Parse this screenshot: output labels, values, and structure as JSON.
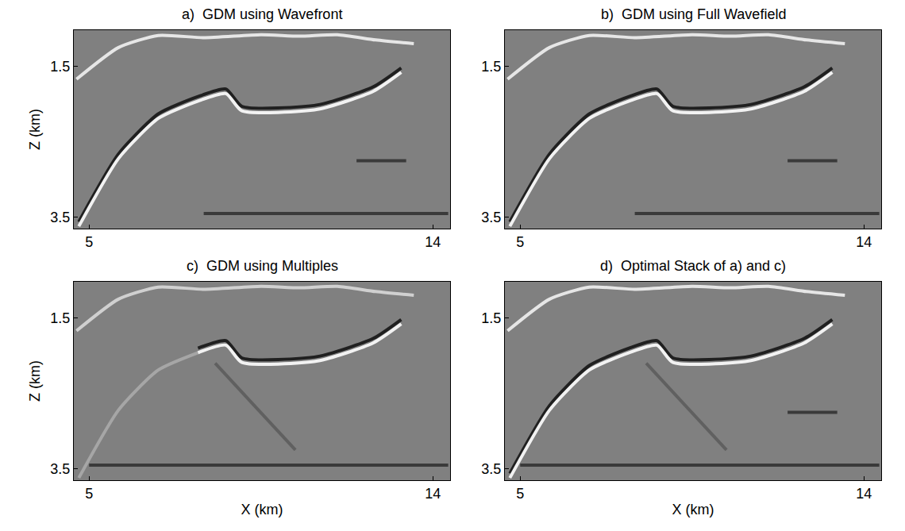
{
  "chart_data": [
    {
      "type": "line",
      "title": "a)  GDM using Wavefront",
      "ylabel": "Z (km)",
      "xlim": [
        4.6,
        14.45
      ],
      "ylim": [
        3.65,
        1.02
      ],
      "xticks": [
        5,
        14
      ],
      "yticks": [
        1.5,
        3.5
      ],
      "grid": false,
      "series": [
        {
          "color": "#202020",
          "x": [
            4.73,
            5.77,
            6.81,
            7.85,
            8.58,
            9.0,
            10.98,
            12.44,
            13.17
          ],
          "values": [
            3.56,
            2.66,
            2.13,
            1.9,
            1.8,
            2.03,
            2.01,
            1.77,
            1.52
          ]
        },
        {
          "color": "#f2f2f2",
          "x": [
            4.73,
            5.77,
            6.81,
            7.85,
            8.58,
            9.0,
            10.98,
            12.44,
            13.17
          ],
          "values": [
            3.62,
            2.72,
            2.19,
            1.96,
            1.86,
            2.09,
            2.07,
            1.83,
            1.58
          ]
        },
        {
          "color": "#e6e6e6",
          "x": [
            4.67,
            5.77,
            6.81,
            8.0,
            9.5,
            10.5,
            11.5,
            12.5,
            13.5
          ],
          "values": [
            1.67,
            1.25,
            1.09,
            1.12,
            1.08,
            1.1,
            1.08,
            1.15,
            1.2
          ]
        },
        {
          "color": "#3a3a3a",
          "x": [
            8.0,
            14.4
          ],
          "values": [
            3.45,
            3.45
          ]
        },
        {
          "color": "#3a3a3a",
          "x": [
            12.0,
            13.3
          ],
          "values": [
            2.75,
            2.75
          ]
        }
      ]
    },
    {
      "type": "line",
      "title": "b)  GDM using Full Wavefield",
      "xlim": [
        4.6,
        14.45
      ],
      "ylim": [
        3.65,
        1.02
      ],
      "xticks": [
        5,
        14
      ],
      "yticks": [
        1.5,
        3.5
      ],
      "grid": false,
      "series": [
        {
          "color": "#202020",
          "x": [
            4.73,
            5.77,
            6.81,
            7.85,
            8.58,
            9.0,
            10.98,
            12.44,
            13.17
          ],
          "values": [
            3.56,
            2.66,
            2.13,
            1.9,
            1.8,
            2.03,
            2.01,
            1.77,
            1.52
          ]
        },
        {
          "color": "#f2f2f2",
          "x": [
            4.73,
            5.77,
            6.81,
            7.85,
            8.58,
            9.0,
            10.98,
            12.44,
            13.17
          ],
          "values": [
            3.62,
            2.72,
            2.19,
            1.96,
            1.86,
            2.09,
            2.07,
            1.83,
            1.58
          ]
        },
        {
          "color": "#e6e6e6",
          "x": [
            4.67,
            5.77,
            6.81,
            8.0,
            9.5,
            10.5,
            11.5,
            12.5,
            13.5
          ],
          "values": [
            1.67,
            1.25,
            1.09,
            1.12,
            1.08,
            1.1,
            1.08,
            1.15,
            1.2
          ]
        },
        {
          "color": "#3a3a3a",
          "x": [
            8.0,
            14.4
          ],
          "values": [
            3.45,
            3.45
          ]
        },
        {
          "color": "#3a3a3a",
          "x": [
            12.0,
            13.3
          ],
          "values": [
            2.75,
            2.75
          ]
        }
      ]
    },
    {
      "type": "line",
      "title": "c)  GDM using Multiples",
      "xlabel": "X (km)",
      "ylabel": "Z (km)",
      "xlim": [
        4.6,
        14.45
      ],
      "ylim": [
        3.65,
        1.02
      ],
      "xticks": [
        5,
        14
      ],
      "yticks": [
        1.5,
        3.5
      ],
      "grid": false,
      "series": [
        {
          "color": "#a6a6a6",
          "x": [
            4.73,
            5.77,
            6.81,
            7.85
          ],
          "values": [
            3.62,
            2.72,
            2.19,
            1.96
          ]
        },
        {
          "color": "#202020",
          "x": [
            7.85,
            8.58,
            9.0,
            10.98,
            12.44,
            13.17
          ],
          "values": [
            1.9,
            1.8,
            2.03,
            2.01,
            1.77,
            1.52
          ]
        },
        {
          "color": "#f2f2f2",
          "x": [
            7.85,
            8.58,
            9.0,
            10.98,
            12.44,
            13.17
          ],
          "values": [
            1.96,
            1.86,
            2.09,
            2.07,
            1.83,
            1.58
          ]
        },
        {
          "color": "#d0d0d0",
          "x": [
            4.67,
            5.77,
            6.81,
            8.0,
            9.5,
            10.5,
            11.5,
            12.5,
            13.5
          ],
          "values": [
            1.67,
            1.25,
            1.09,
            1.12,
            1.08,
            1.1,
            1.08,
            1.15,
            1.2
          ]
        },
        {
          "color": "#606060",
          "x": [
            8.3,
            10.4
          ],
          "values": [
            2.1,
            3.25
          ]
        },
        {
          "color": "#3a3a3a",
          "x": [
            5.0,
            14.4
          ],
          "values": [
            3.45,
            3.45
          ]
        }
      ]
    },
    {
      "type": "line",
      "title": "d)  Optimal Stack of a) and c)",
      "xlabel": "X (km)",
      "xlim": [
        4.6,
        14.45
      ],
      "ylim": [
        3.65,
        1.02
      ],
      "xticks": [
        5,
        14
      ],
      "yticks": [
        1.5,
        3.5
      ],
      "grid": false,
      "series": [
        {
          "color": "#202020",
          "x": [
            4.73,
            5.77,
            6.81,
            7.85,
            8.58,
            9.0,
            10.98,
            12.44,
            13.17
          ],
          "values": [
            3.56,
            2.66,
            2.13,
            1.9,
            1.8,
            2.03,
            2.01,
            1.77,
            1.52
          ]
        },
        {
          "color": "#f2f2f2",
          "x": [
            4.73,
            5.77,
            6.81,
            7.85,
            8.58,
            9.0,
            10.98,
            12.44,
            13.17
          ],
          "values": [
            3.62,
            2.72,
            2.19,
            1.96,
            1.86,
            2.09,
            2.07,
            1.83,
            1.58
          ]
        },
        {
          "color": "#e6e6e6",
          "x": [
            4.67,
            5.77,
            6.81,
            8.0,
            9.5,
            10.5,
            11.5,
            12.5,
            13.5
          ],
          "values": [
            1.67,
            1.25,
            1.09,
            1.12,
            1.08,
            1.1,
            1.08,
            1.15,
            1.2
          ]
        },
        {
          "color": "#606060",
          "x": [
            8.3,
            10.4
          ],
          "values": [
            2.1,
            3.25
          ]
        },
        {
          "color": "#3a3a3a",
          "x": [
            5.0,
            14.4
          ],
          "values": [
            3.45,
            3.45
          ]
        },
        {
          "color": "#3a3a3a",
          "x": [
            12.0,
            13.3
          ],
          "values": [
            2.75,
            2.75
          ]
        }
      ]
    }
  ]
}
